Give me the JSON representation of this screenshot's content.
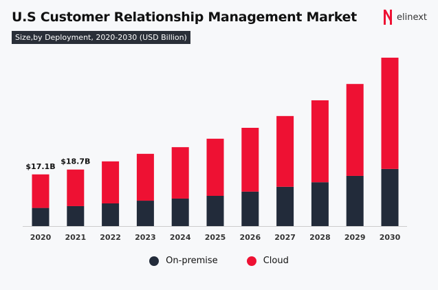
{
  "title": "U.S Customer Relationship Management Market",
  "subtitle": "Size,by Deployment, 2020-2030 (USD Billion)",
  "logo": {
    "text": "elinext",
    "color": "#ee1133"
  },
  "colors": {
    "on_premise": "#222b3a",
    "cloud": "#ee1133"
  },
  "chart_data": {
    "type": "bar",
    "stacked": true,
    "title": "U.S Customer Relationship Management Market",
    "subtitle": "Size,by Deployment, 2020-2030 (USD Billion)",
    "categories": [
      "2020",
      "2021",
      "2022",
      "2023",
      "2024",
      "2025",
      "2026",
      "2027",
      "2028",
      "2029",
      "2030"
    ],
    "series": [
      {
        "name": "On-premise",
        "values": [
          6.0,
          6.6,
          7.5,
          8.4,
          9.1,
          10.0,
          11.4,
          13.0,
          14.5,
          16.6,
          18.9
        ]
      },
      {
        "name": "Cloud",
        "values": [
          11.1,
          12.1,
          13.9,
          15.5,
          17.0,
          18.9,
          21.1,
          23.4,
          27.1,
          30.4,
          36.8
        ]
      }
    ],
    "data_labels": [
      {
        "category": "2020",
        "text": "$17.1B"
      },
      {
        "category": "2021",
        "text": "$18.7B"
      }
    ],
    "ylim": [
      0,
      56
    ],
    "grid": false,
    "legend": "bottom"
  }
}
